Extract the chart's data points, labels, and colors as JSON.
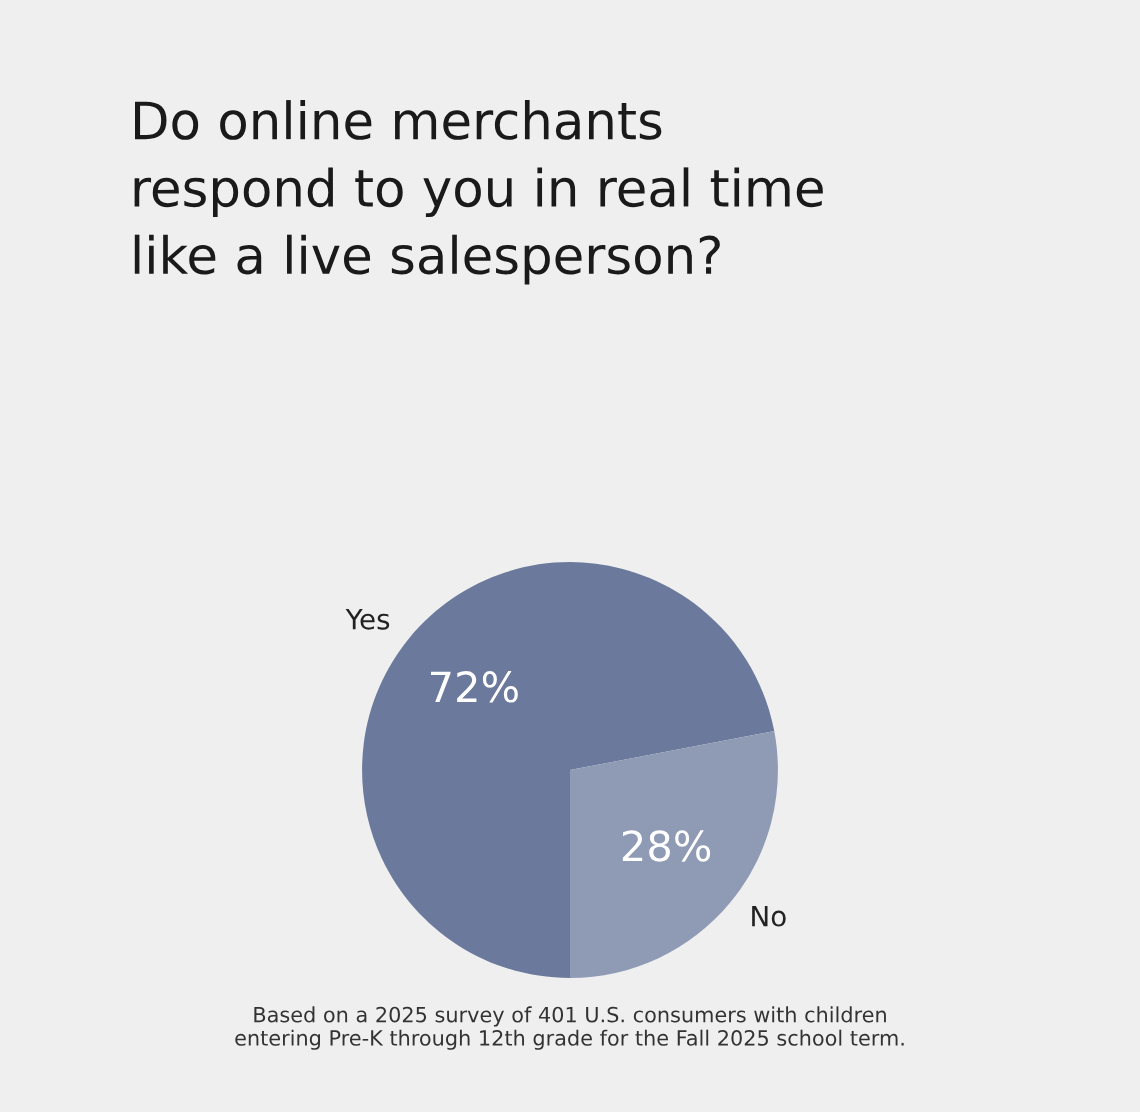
{
  "chart_data": {
    "type": "pie",
    "title": "Do online merchants\nrespond to you in real time\nlike a live salesperson?",
    "categories": [
      "Yes",
      "No"
    ],
    "values": [
      72,
      28
    ],
    "value_labels": [
      "72%",
      "28%"
    ],
    "colors": [
      "#6b7a9c",
      "#8f9bb5"
    ],
    "annotations": [
      "Based on a 2025 survey of 401 U.S. consumers with children\nentering Pre-K through 12th grade for the Fall 2025 school term."
    ]
  }
}
